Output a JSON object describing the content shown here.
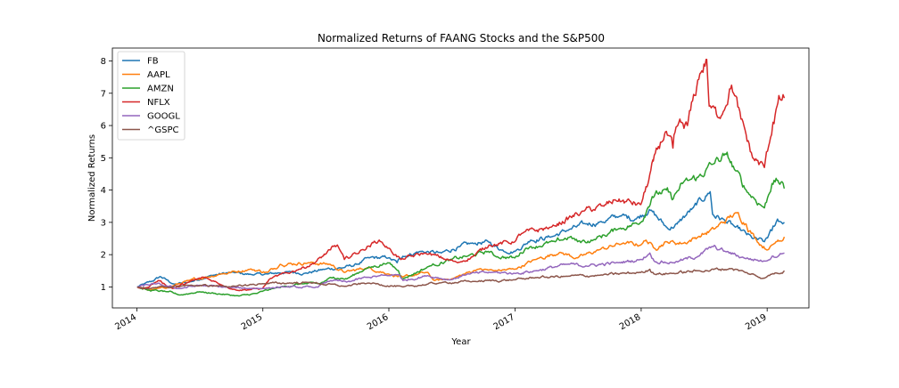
{
  "chart_data": {
    "type": "line",
    "title": "Normalized Returns of FAANG Stocks and the S&P500",
    "xlabel": "Year",
    "ylabel": "Normalized Returns",
    "xlim": [
      "2013-10-22",
      "2019-05-02"
    ],
    "ylim": [
      0.35,
      8.4
    ],
    "xticks": [
      {
        "date": "2014-01-01",
        "label": "2014"
      },
      {
        "date": "2015-01-01",
        "label": "2015"
      },
      {
        "date": "2016-01-01",
        "label": "2016"
      },
      {
        "date": "2017-01-01",
        "label": "2017"
      },
      {
        "date": "2018-01-01",
        "label": "2018"
      },
      {
        "date": "2019-01-01",
        "label": "2019"
      }
    ],
    "yticks": [
      1,
      2,
      3,
      4,
      5,
      6,
      7,
      8
    ],
    "grid": false,
    "legend_position": "upper-left",
    "series": [
      {
        "name": "FB",
        "color": "#1f77b4",
        "points": [
          [
            "2014-01-02",
            1.0
          ],
          [
            "2014-02-15",
            1.18
          ],
          [
            "2014-03-10",
            1.32
          ],
          [
            "2014-04-20",
            1.08
          ],
          [
            "2014-06-01",
            1.15
          ],
          [
            "2014-08-01",
            1.35
          ],
          [
            "2014-10-01",
            1.45
          ],
          [
            "2014-12-01",
            1.38
          ],
          [
            "2015-01-15",
            1.4
          ],
          [
            "2015-03-15",
            1.47
          ],
          [
            "2015-05-01",
            1.42
          ],
          [
            "2015-07-01",
            1.55
          ],
          [
            "2015-08-25",
            1.6
          ],
          [
            "2015-10-01",
            1.7
          ],
          [
            "2015-11-05",
            1.9
          ],
          [
            "2015-12-31",
            1.9
          ],
          [
            "2016-01-25",
            1.75
          ],
          [
            "2016-02-10",
            1.95
          ],
          [
            "2016-04-01",
            2.1
          ],
          [
            "2016-06-01",
            2.05
          ],
          [
            "2016-07-25",
            2.25
          ],
          [
            "2016-09-01",
            2.35
          ],
          [
            "2016-10-15",
            2.4
          ],
          [
            "2016-11-20",
            2.15
          ],
          [
            "2016-12-31",
            2.1
          ],
          [
            "2017-02-15",
            2.45
          ],
          [
            "2017-04-15",
            2.55
          ],
          [
            "2017-06-01",
            2.75
          ],
          [
            "2017-07-25",
            2.95
          ],
          [
            "2017-09-01",
            3.0
          ],
          [
            "2017-11-01",
            3.2
          ],
          [
            "2017-12-15",
            3.1
          ],
          [
            "2018-01-25",
            3.4
          ],
          [
            "2018-03-20",
            2.8
          ],
          [
            "2018-04-15",
            2.95
          ],
          [
            "2018-06-01",
            3.45
          ],
          [
            "2018-07-20",
            3.95
          ],
          [
            "2018-07-27",
            3.25
          ],
          [
            "2018-09-01",
            3.05
          ],
          [
            "2018-10-01",
            2.85
          ],
          [
            "2018-11-20",
            2.5
          ],
          [
            "2018-12-24",
            2.4
          ],
          [
            "2019-01-15",
            2.75
          ],
          [
            "2019-01-31",
            3.1
          ],
          [
            "2019-02-20",
            3.0
          ]
        ]
      },
      {
        "name": "AAPL",
        "color": "#ff7f0e",
        "points": [
          [
            "2014-01-02",
            1.0
          ],
          [
            "2014-02-01",
            0.9
          ],
          [
            "2014-04-01",
            0.98
          ],
          [
            "2014-06-01",
            1.2
          ],
          [
            "2014-09-01",
            1.4
          ],
          [
            "2014-11-25",
            1.55
          ],
          [
            "2015-01-15",
            1.45
          ],
          [
            "2015-02-20",
            1.7
          ],
          [
            "2015-05-15",
            1.75
          ],
          [
            "2015-07-15",
            1.7
          ],
          [
            "2015-08-25",
            1.45
          ],
          [
            "2015-11-01",
            1.6
          ],
          [
            "2015-12-31",
            1.4
          ],
          [
            "2016-02-10",
            1.3
          ],
          [
            "2016-04-20",
            1.45
          ],
          [
            "2016-05-12",
            1.2
          ],
          [
            "2016-07-01",
            1.25
          ],
          [
            "2016-09-15",
            1.55
          ],
          [
            "2016-11-01",
            1.5
          ],
          [
            "2016-12-31",
            1.55
          ],
          [
            "2017-03-01",
            1.85
          ],
          [
            "2017-05-10",
            2.07
          ],
          [
            "2017-07-01",
            1.9
          ],
          [
            "2017-09-01",
            2.15
          ],
          [
            "2017-11-08",
            2.35
          ],
          [
            "2017-12-31",
            2.3
          ],
          [
            "2018-01-15",
            2.45
          ],
          [
            "2018-02-08",
            2.2
          ],
          [
            "2018-03-15",
            2.4
          ],
          [
            "2018-05-01",
            2.35
          ],
          [
            "2018-06-15",
            2.55
          ],
          [
            "2018-08-02",
            2.8
          ],
          [
            "2018-10-03",
            3.3
          ],
          [
            "2018-11-01",
            2.95
          ],
          [
            "2018-12-01",
            2.45
          ],
          [
            "2019-01-03",
            2.15
          ],
          [
            "2019-02-01",
            2.45
          ],
          [
            "2019-02-20",
            2.55
          ]
        ]
      },
      {
        "name": "AMZN",
        "color": "#2ca02c",
        "points": [
          [
            "2014-01-02",
            1.0
          ],
          [
            "2014-02-01",
            0.9
          ],
          [
            "2014-04-01",
            0.85
          ],
          [
            "2014-05-05",
            0.75
          ],
          [
            "2014-07-01",
            0.85
          ],
          [
            "2014-10-24",
            0.72
          ],
          [
            "2014-12-15",
            0.8
          ],
          [
            "2015-01-30",
            0.95
          ],
          [
            "2015-04-24",
            1.1
          ],
          [
            "2015-06-15",
            1.1
          ],
          [
            "2015-07-24",
            1.3
          ],
          [
            "2015-09-01",
            1.25
          ],
          [
            "2015-10-23",
            1.55
          ],
          [
            "2015-12-29",
            1.75
          ],
          [
            "2016-01-29",
            1.5
          ],
          [
            "2016-02-10",
            1.25
          ],
          [
            "2016-04-29",
            1.65
          ],
          [
            "2016-07-01",
            1.85
          ],
          [
            "2016-08-15",
            1.95
          ],
          [
            "2016-10-15",
            2.1
          ],
          [
            "2016-11-05",
            1.95
          ],
          [
            "2016-12-31",
            1.9
          ],
          [
            "2017-02-01",
            2.2
          ],
          [
            "2017-04-28",
            2.4
          ],
          [
            "2017-06-09",
            2.55
          ],
          [
            "2017-07-01",
            2.4
          ],
          [
            "2017-08-15",
            2.45
          ],
          [
            "2017-10-27",
            2.8
          ],
          [
            "2017-12-31",
            3.0
          ],
          [
            "2018-02-02",
            3.8
          ],
          [
            "2018-03-15",
            4.0
          ],
          [
            "2018-04-01",
            3.7
          ],
          [
            "2018-04-30",
            4.2
          ],
          [
            "2018-06-15",
            4.4
          ],
          [
            "2018-07-27",
            4.8
          ],
          [
            "2018-09-04",
            5.1
          ],
          [
            "2018-10-01",
            4.6
          ],
          [
            "2018-11-01",
            4.0
          ],
          [
            "2018-12-24",
            3.45
          ],
          [
            "2019-01-15",
            4.2
          ],
          [
            "2019-02-01",
            4.3
          ],
          [
            "2019-02-20",
            4.05
          ]
        ]
      },
      {
        "name": "NFLX",
        "color": "#d62728",
        "points": [
          [
            "2014-01-02",
            1.0
          ],
          [
            "2014-01-23",
            0.95
          ],
          [
            "2014-03-05",
            1.2
          ],
          [
            "2014-04-15",
            0.95
          ],
          [
            "2014-06-01",
            1.15
          ],
          [
            "2014-07-15",
            1.3
          ],
          [
            "2014-10-16",
            0.9
          ],
          [
            "2014-12-31",
            0.95
          ],
          [
            "2015-01-21",
            1.25
          ],
          [
            "2015-04-16",
            1.55
          ],
          [
            "2015-06-01",
            1.75
          ],
          [
            "2015-07-16",
            2.15
          ],
          [
            "2015-08-05",
            2.3
          ],
          [
            "2015-08-25",
            1.85
          ],
          [
            "2015-10-15",
            2.15
          ],
          [
            "2015-12-04",
            2.45
          ],
          [
            "2015-12-31",
            2.2
          ],
          [
            "2016-02-05",
            1.85
          ],
          [
            "2016-04-15",
            2.05
          ],
          [
            "2016-07-19",
            1.75
          ],
          [
            "2016-09-01",
            1.95
          ],
          [
            "2016-10-18",
            2.3
          ],
          [
            "2016-12-31",
            2.4
          ],
          [
            "2017-01-19",
            2.65
          ],
          [
            "2017-04-15",
            2.85
          ],
          [
            "2017-07-18",
            3.35
          ],
          [
            "2017-09-15",
            3.5
          ],
          [
            "2017-10-17",
            3.7
          ],
          [
            "2017-12-31",
            3.55
          ],
          [
            "2018-01-23",
            4.3
          ],
          [
            "2018-02-05",
            4.9
          ],
          [
            "2018-03-12",
            5.8
          ],
          [
            "2018-04-03",
            5.3
          ],
          [
            "2018-04-17",
            6.0
          ],
          [
            "2018-05-15",
            6.0
          ],
          [
            "2018-06-20",
            7.6
          ],
          [
            "2018-07-10",
            8.05
          ],
          [
            "2018-07-17",
            6.6
          ],
          [
            "2018-08-15",
            6.25
          ],
          [
            "2018-09-20",
            7.25
          ],
          [
            "2018-10-17",
            6.2
          ],
          [
            "2018-11-20",
            5.0
          ],
          [
            "2018-12-24",
            4.7
          ],
          [
            "2019-01-18",
            6.1
          ],
          [
            "2019-02-01",
            6.7
          ],
          [
            "2019-02-20",
            6.85
          ]
        ]
      },
      {
        "name": "GOOGL",
        "color": "#9467bd",
        "points": [
          [
            "2014-01-02",
            1.0
          ],
          [
            "2014-02-20",
            1.1
          ],
          [
            "2014-05-01",
            0.95
          ],
          [
            "2014-07-01",
            1.05
          ],
          [
            "2014-10-01",
            0.98
          ],
          [
            "2014-12-31",
            0.95
          ],
          [
            "2015-03-01",
            1.0
          ],
          [
            "2015-06-01",
            0.98
          ],
          [
            "2015-07-17",
            1.2
          ],
          [
            "2015-09-01",
            1.15
          ],
          [
            "2015-11-01",
            1.3
          ],
          [
            "2015-12-31",
            1.35
          ],
          [
            "2016-02-01",
            1.38
          ],
          [
            "2016-02-11",
            1.2
          ],
          [
            "2016-04-22",
            1.35
          ],
          [
            "2016-06-27",
            1.22
          ],
          [
            "2016-08-15",
            1.4
          ],
          [
            "2016-10-25",
            1.45
          ],
          [
            "2016-12-31",
            1.42
          ],
          [
            "2017-03-01",
            1.5
          ],
          [
            "2017-06-01",
            1.7
          ],
          [
            "2017-07-25",
            1.65
          ],
          [
            "2017-10-27",
            1.75
          ],
          [
            "2017-12-31",
            1.85
          ],
          [
            "2018-01-26",
            2.05
          ],
          [
            "2018-02-08",
            1.8
          ],
          [
            "2018-04-02",
            1.75
          ],
          [
            "2018-06-15",
            1.95
          ],
          [
            "2018-07-26",
            2.25
          ],
          [
            "2018-09-01",
            2.1
          ],
          [
            "2018-10-26",
            1.9
          ],
          [
            "2018-12-24",
            1.8
          ],
          [
            "2019-01-15",
            1.95
          ],
          [
            "2019-02-20",
            2.05
          ]
        ]
      },
      {
        "name": "^GSPC",
        "color": "#8c564b",
        "points": [
          [
            "2014-01-02",
            1.0
          ],
          [
            "2014-02-03",
            0.95
          ],
          [
            "2014-06-01",
            1.05
          ],
          [
            "2014-10-15",
            1.02
          ],
          [
            "2014-12-31",
            1.1
          ],
          [
            "2015-05-15",
            1.14
          ],
          [
            "2015-08-25",
            1.02
          ],
          [
            "2015-11-01",
            1.12
          ],
          [
            "2016-02-11",
            1.0
          ],
          [
            "2016-06-01",
            1.13
          ],
          [
            "2016-09-01",
            1.17
          ],
          [
            "2016-12-31",
            1.22
          ],
          [
            "2017-03-01",
            1.29
          ],
          [
            "2017-06-01",
            1.33
          ],
          [
            "2017-09-01",
            1.36
          ],
          [
            "2017-12-31",
            1.45
          ],
          [
            "2018-01-26",
            1.55
          ],
          [
            "2018-02-08",
            1.4
          ],
          [
            "2018-04-02",
            1.42
          ],
          [
            "2018-06-15",
            1.5
          ],
          [
            "2018-09-20",
            1.57
          ],
          [
            "2018-10-29",
            1.45
          ],
          [
            "2018-12-24",
            1.27
          ],
          [
            "2019-01-15",
            1.4
          ],
          [
            "2019-02-20",
            1.5
          ]
        ]
      }
    ]
  }
}
